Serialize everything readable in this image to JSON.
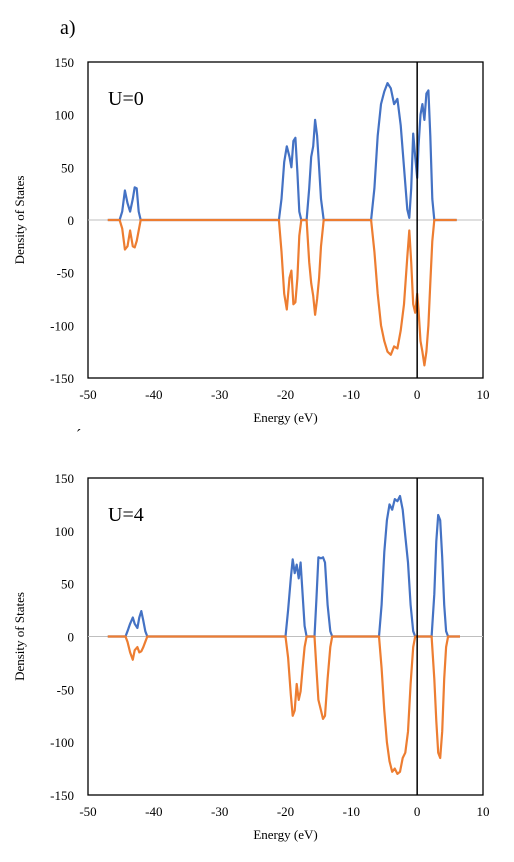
{
  "panel_label": "a)",
  "stray_mark": "´",
  "colors": {
    "spin_up": "#4472C4",
    "spin_down": "#ED7D31",
    "axis": "#000000",
    "zero_line": "#BFBFBF"
  },
  "chart_data": [
    {
      "type": "line",
      "annotation": "U=0",
      "xlabel": "Energy (eV)",
      "ylabel": "Density of States",
      "xlim": [
        -50,
        10
      ],
      "ylim": [
        -150,
        150
      ],
      "x_ticks": [
        -50,
        -40,
        -30,
        -20,
        -10,
        0,
        10
      ],
      "y_ticks": [
        -150,
        -100,
        -50,
        0,
        50,
        100,
        150
      ],
      "grid": false,
      "fermi_line_x": 0,
      "series": [
        {
          "color": "#4472C4",
          "points": [
            [
              -47,
              0
            ],
            [
              -45.2,
              0
            ],
            [
              -44.8,
              8
            ],
            [
              -44.4,
              28
            ],
            [
              -44,
              16
            ],
            [
              -43.6,
              8
            ],
            [
              -43.2,
              20
            ],
            [
              -42.9,
              31
            ],
            [
              -42.6,
              30
            ],
            [
              -42.3,
              8
            ],
            [
              -42,
              0
            ],
            [
              -21,
              0
            ],
            [
              -20.6,
              20
            ],
            [
              -20.2,
              55
            ],
            [
              -19.8,
              70
            ],
            [
              -19.4,
              60
            ],
            [
              -19.1,
              50
            ],
            [
              -18.8,
              75
            ],
            [
              -18.5,
              78
            ],
            [
              -18.2,
              45
            ],
            [
              -17.9,
              8
            ],
            [
              -17.6,
              0
            ],
            [
              -16.8,
              0
            ],
            [
              -16.4,
              30
            ],
            [
              -16.1,
              60
            ],
            [
              -15.8,
              70
            ],
            [
              -15.5,
              95
            ],
            [
              -15.2,
              80
            ],
            [
              -14.9,
              50
            ],
            [
              -14.6,
              20
            ],
            [
              -14.2,
              0
            ],
            [
              -7,
              0
            ],
            [
              -6.5,
              30
            ],
            [
              -6,
              80
            ],
            [
              -5.5,
              110
            ],
            [
              -5,
              122
            ],
            [
              -4.5,
              130
            ],
            [
              -4,
              125
            ],
            [
              -3.5,
              110
            ],
            [
              -3,
              115
            ],
            [
              -2.5,
              90
            ],
            [
              -2,
              50
            ],
            [
              -1.5,
              10
            ],
            [
              -1.2,
              2
            ],
            [
              -0.9,
              30
            ],
            [
              -0.6,
              82
            ],
            [
              -0.3,
              60
            ],
            [
              0,
              40
            ],
            [
              0.2,
              70
            ],
            [
              0.5,
              100
            ],
            [
              0.8,
              110
            ],
            [
              1.1,
              95
            ],
            [
              1.4,
              120
            ],
            [
              1.7,
              123
            ],
            [
              2,
              80
            ],
            [
              2.3,
              20
            ],
            [
              2.6,
              0
            ],
            [
              6,
              0
            ]
          ]
        },
        {
          "color": "#ED7D31",
          "points": [
            [
              -47,
              0
            ],
            [
              -45.2,
              0
            ],
            [
              -44.8,
              -8
            ],
            [
              -44.4,
              -28
            ],
            [
              -44,
              -25
            ],
            [
              -43.6,
              -10
            ],
            [
              -43.2,
              -25
            ],
            [
              -42.9,
              -26
            ],
            [
              -42.6,
              -20
            ],
            [
              -42.3,
              -10
            ],
            [
              -42,
              0
            ],
            [
              -21,
              0
            ],
            [
              -20.6,
              -30
            ],
            [
              -20.2,
              -70
            ],
            [
              -19.8,
              -85
            ],
            [
              -19.4,
              -55
            ],
            [
              -19.1,
              -48
            ],
            [
              -18.8,
              -80
            ],
            [
              -18.5,
              -78
            ],
            [
              -18.2,
              -55
            ],
            [
              -17.9,
              -15
            ],
            [
              -17.6,
              0
            ],
            [
              -16.8,
              0
            ],
            [
              -16.4,
              -40
            ],
            [
              -16.1,
              -60
            ],
            [
              -15.8,
              -72
            ],
            [
              -15.5,
              -90
            ],
            [
              -15.2,
              -75
            ],
            [
              -14.9,
              -55
            ],
            [
              -14.6,
              -25
            ],
            [
              -14.2,
              0
            ],
            [
              -7,
              0
            ],
            [
              -6.5,
              -30
            ],
            [
              -6,
              -70
            ],
            [
              -5.5,
              -100
            ],
            [
              -5,
              -115
            ],
            [
              -4.5,
              -125
            ],
            [
              -4,
              -128
            ],
            [
              -3.5,
              -120
            ],
            [
              -3,
              -122
            ],
            [
              -2.5,
              -105
            ],
            [
              -2,
              -80
            ],
            [
              -1.5,
              -35
            ],
            [
              -1.2,
              -10
            ],
            [
              -0.9,
              -40
            ],
            [
              -0.6,
              -80
            ],
            [
              -0.3,
              -88
            ],
            [
              0,
              -70
            ],
            [
              0.2,
              -85
            ],
            [
              0.5,
              -115
            ],
            [
              0.8,
              -125
            ],
            [
              1.1,
              -138
            ],
            [
              1.4,
              -125
            ],
            [
              1.7,
              -100
            ],
            [
              2,
              -60
            ],
            [
              2.3,
              -20
            ],
            [
              2.6,
              0
            ],
            [
              6,
              0
            ]
          ]
        }
      ]
    },
    {
      "type": "line",
      "annotation": "U=4",
      "xlabel": "Energy (eV)",
      "ylabel": "Density of States",
      "xlim": [
        -50,
        10
      ],
      "ylim": [
        -150,
        150
      ],
      "x_ticks": [
        -50,
        -40,
        -30,
        -20,
        -10,
        0,
        10
      ],
      "y_ticks": [
        -150,
        -100,
        -50,
        0,
        50,
        100,
        150
      ],
      "grid": false,
      "fermi_line_x": 0,
      "series": [
        {
          "color": "#4472C4",
          "points": [
            [
              -47,
              0
            ],
            [
              -44.3,
              0
            ],
            [
              -44,
              5
            ],
            [
              -43.6,
              12
            ],
            [
              -43.2,
              18
            ],
            [
              -42.9,
              12
            ],
            [
              -42.5,
              8
            ],
            [
              -42.2,
              18
            ],
            [
              -41.9,
              24
            ],
            [
              -41.6,
              15
            ],
            [
              -41.3,
              5
            ],
            [
              -41,
              0
            ],
            [
              -20,
              0
            ],
            [
              -19.6,
              25
            ],
            [
              -19.2,
              55
            ],
            [
              -18.9,
              73
            ],
            [
              -18.6,
              60
            ],
            [
              -18.3,
              68
            ],
            [
              -18,
              55
            ],
            [
              -17.7,
              70
            ],
            [
              -17.4,
              40
            ],
            [
              -17.1,
              10
            ],
            [
              -16.8,
              0
            ],
            [
              -15.6,
              0
            ],
            [
              -15.3,
              35
            ],
            [
              -15,
              75
            ],
            [
              -14.6,
              74
            ],
            [
              -14.3,
              75
            ],
            [
              -14,
              70
            ],
            [
              -13.6,
              30
            ],
            [
              -13.2,
              5
            ],
            [
              -12.9,
              0
            ],
            [
              -5.8,
              0
            ],
            [
              -5.4,
              30
            ],
            [
              -5,
              80
            ],
            [
              -4.6,
              110
            ],
            [
              -4.2,
              125
            ],
            [
              -3.8,
              120
            ],
            [
              -3.4,
              130
            ],
            [
              -3,
              128
            ],
            [
              -2.6,
              133
            ],
            [
              -2.2,
              120
            ],
            [
              -1.8,
              95
            ],
            [
              -1.4,
              70
            ],
            [
              -1,
              30
            ],
            [
              -0.6,
              5
            ],
            [
              -0.3,
              0
            ],
            [
              2.2,
              0
            ],
            [
              2.6,
              40
            ],
            [
              2.9,
              90
            ],
            [
              3.2,
              115
            ],
            [
              3.5,
              110
            ],
            [
              3.8,
              75
            ],
            [
              4.1,
              30
            ],
            [
              4.4,
              5
            ],
            [
              4.7,
              0
            ],
            [
              6.5,
              0
            ]
          ]
        },
        {
          "color": "#ED7D31",
          "points": [
            [
              -47,
              0
            ],
            [
              -44.3,
              0
            ],
            [
              -44,
              -5
            ],
            [
              -43.6,
              -15
            ],
            [
              -43.2,
              -22
            ],
            [
              -42.9,
              -13
            ],
            [
              -42.5,
              -10
            ],
            [
              -42.2,
              -15
            ],
            [
              -41.9,
              -14
            ],
            [
              -41.6,
              -10
            ],
            [
              -41.3,
              -5
            ],
            [
              -41,
              0
            ],
            [
              -20,
              0
            ],
            [
              -19.6,
              -20
            ],
            [
              -19.2,
              -55
            ],
            [
              -18.9,
              -75
            ],
            [
              -18.6,
              -70
            ],
            [
              -18.3,
              -45
            ],
            [
              -18,
              -60
            ],
            [
              -17.7,
              -52
            ],
            [
              -17.4,
              -30
            ],
            [
              -17.1,
              -10
            ],
            [
              -16.8,
              0
            ],
            [
              -15.6,
              0
            ],
            [
              -15.3,
              -30
            ],
            [
              -15,
              -60
            ],
            [
              -14.6,
              -70
            ],
            [
              -14.3,
              -78
            ],
            [
              -14,
              -75
            ],
            [
              -13.6,
              -40
            ],
            [
              -13.2,
              -10
            ],
            [
              -12.9,
              0
            ],
            [
              -5.8,
              0
            ],
            [
              -5.4,
              -30
            ],
            [
              -5,
              -70
            ],
            [
              -4.6,
              -100
            ],
            [
              -4.2,
              -118
            ],
            [
              -3.8,
              -128
            ],
            [
              -3.4,
              -125
            ],
            [
              -3,
              -130
            ],
            [
              -2.6,
              -128
            ],
            [
              -2.2,
              -115
            ],
            [
              -1.8,
              -110
            ],
            [
              -1.4,
              -90
            ],
            [
              -1,
              -45
            ],
            [
              -0.6,
              -10
            ],
            [
              -0.3,
              0
            ],
            [
              2.2,
              0
            ],
            [
              2.6,
              -40
            ],
            [
              2.9,
              -80
            ],
            [
              3.2,
              -110
            ],
            [
              3.5,
              -115
            ],
            [
              3.8,
              -90
            ],
            [
              4.1,
              -40
            ],
            [
              4.4,
              -10
            ],
            [
              4.7,
              0
            ],
            [
              6.5,
              0
            ]
          ]
        }
      ]
    }
  ]
}
